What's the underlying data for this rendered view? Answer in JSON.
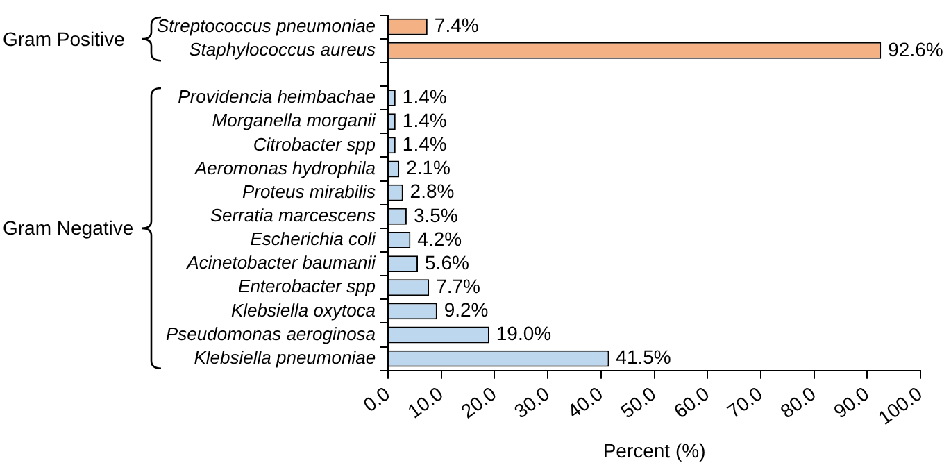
{
  "chart_data": {
    "type": "bar",
    "orientation": "horizontal",
    "xlabel": "Percent (%)",
    "categories": [
      "Streptococcus pneumoniae",
      "Staphylococcus aureus",
      null,
      "Providencia heimbachae",
      "Morganella morganii",
      "Citrobacter spp",
      "Aeromonas hydrophila",
      "Proteus mirabilis",
      "Serratia marcescens",
      "Escherichia coli",
      "Acinetobacter baumanii",
      "Enterobacter spp",
      "Klebsiella oxytoca",
      "Pseudomonas aeroginosa",
      "Klebsiella pneumoniae"
    ],
    "values": [
      7.4,
      92.6,
      null,
      1.4,
      1.4,
      1.4,
      2.1,
      2.8,
      3.5,
      4.2,
      5.6,
      7.7,
      9.2,
      19.0,
      41.5
    ],
    "value_labels": [
      "7.4%",
      "92.6%",
      null,
      "1.4%",
      "1.4%",
      "1.4%",
      "2.1%",
      "2.8%",
      "3.5%",
      "4.2%",
      "5.6%",
      "7.7%",
      "9.2%",
      "19.0%",
      "41.5%"
    ],
    "colors": [
      "#f4b183",
      "#f4b183",
      null,
      "#bdd7ee",
      "#bdd7ee",
      "#bdd7ee",
      "#bdd7ee",
      "#bdd7ee",
      "#bdd7ee",
      "#bdd7ee",
      "#bdd7ee",
      "#bdd7ee",
      "#bdd7ee",
      "#bdd7ee",
      "#bdd7ee"
    ],
    "xlim": [
      0,
      100
    ],
    "xticks": [
      {
        "value": 0,
        "label": "0.0"
      },
      {
        "value": 10,
        "label": "10.0"
      },
      {
        "value": 20,
        "label": "20.0"
      },
      {
        "value": 30,
        "label": "30.0"
      },
      {
        "value": 40,
        "label": "40.0"
      },
      {
        "value": 50,
        "label": "50.0"
      },
      {
        "value": 60,
        "label": "60.0"
      },
      {
        "value": 70,
        "label": "70.0"
      },
      {
        "value": 80,
        "label": "80.0"
      },
      {
        "value": 90,
        "label": "90.0"
      },
      {
        "value": 100,
        "label": "100.0"
      }
    ],
    "annotations": [
      "Gram Positive",
      "Gram Negative"
    ],
    "grid": false,
    "legend": false
  }
}
